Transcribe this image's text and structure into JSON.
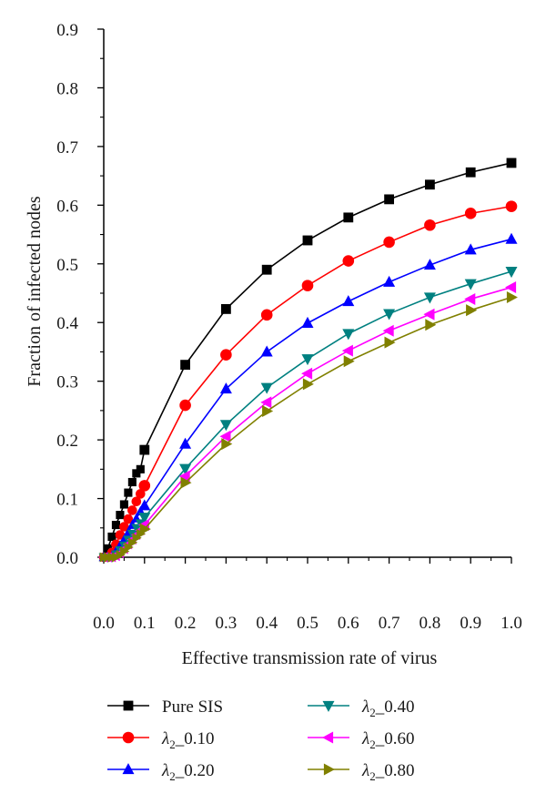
{
  "chart_data": {
    "type": "line",
    "xlabel": "Effective transmission rate of virus",
    "ylabel": "Fraction of infected nodes",
    "xlim": [
      0.0,
      1.0
    ],
    "ylim": [
      0.0,
      0.9
    ],
    "xticks": [
      "0.0",
      "0.1",
      "0.2",
      "0.3",
      "0.4",
      "0.5",
      "0.6",
      "0.7",
      "0.8",
      "0.9",
      "1.0"
    ],
    "yticks": [
      "0.0",
      "0.1",
      "0.2",
      "0.3",
      "0.4",
      "0.5",
      "0.6",
      "0.7",
      "0.8",
      "0.9"
    ],
    "grid": false,
    "legend_position": "bottom",
    "x": [
      0.0,
      0.01,
      0.02,
      0.03,
      0.04,
      0.05,
      0.06,
      0.07,
      0.08,
      0.09,
      0.1,
      0.2,
      0.3,
      0.4,
      0.5,
      0.6,
      0.7,
      0.8,
      0.9,
      1.0
    ],
    "series": [
      {
        "name": "Pure SIS",
        "legend_prefix": "",
        "legend_suffix": "",
        "color": "#000000",
        "marker": "square",
        "values": [
          0.0,
          0.015,
          0.035,
          0.055,
          0.072,
          0.09,
          0.11,
          0.128,
          0.143,
          0.15,
          0.183,
          0.328,
          0.423,
          0.49,
          0.54,
          0.579,
          0.61,
          0.635,
          0.656,
          0.672
        ]
      },
      {
        "name": "λ2_0.10",
        "legend_prefix": "λ",
        "legend_sub": "2",
        "legend_suffix": "_0.10",
        "color": "#ff0000",
        "marker": "circle",
        "values": [
          0.0,
          0.0,
          0.008,
          0.022,
          0.038,
          0.052,
          0.065,
          0.08,
          0.095,
          0.108,
          0.122,
          0.259,
          0.345,
          0.413,
          0.463,
          0.505,
          0.537,
          0.566,
          0.586,
          0.598
        ]
      },
      {
        "name": "λ2_0.20",
        "legend_prefix": "λ",
        "legend_sub": "2",
        "legend_suffix": "_0.20",
        "color": "#0000ff",
        "marker": "triangle-up",
        "values": [
          0.0,
          0.0,
          0.002,
          0.01,
          0.02,
          0.03,
          0.042,
          0.055,
          0.066,
          0.078,
          0.088,
          0.193,
          0.287,
          0.35,
          0.399,
          0.436,
          0.469,
          0.498,
          0.524,
          0.542
        ]
      },
      {
        "name": "λ2_0.40",
        "legend_prefix": "λ",
        "legend_sub": "2",
        "legend_suffix": "_0.40",
        "color": "#008080",
        "marker": "triangle-down",
        "values": [
          0.0,
          0.0,
          0.0,
          0.005,
          0.012,
          0.02,
          0.03,
          0.04,
          0.05,
          0.058,
          0.068,
          0.151,
          0.226,
          0.289,
          0.338,
          0.381,
          0.415,
          0.443,
          0.466,
          0.487
        ]
      },
      {
        "name": "λ2_0.60",
        "legend_prefix": "λ",
        "legend_sub": "2",
        "legend_suffix": "_0.60",
        "color": "#ff00ff",
        "marker": "triangle-left",
        "values": [
          0.0,
          0.0,
          0.0,
          0.002,
          0.007,
          0.014,
          0.022,
          0.03,
          0.038,
          0.046,
          0.055,
          0.138,
          0.206,
          0.264,
          0.313,
          0.352,
          0.386,
          0.414,
          0.44,
          0.46
        ]
      },
      {
        "name": "λ2_0.80",
        "legend_prefix": "λ",
        "legend_sub": "2",
        "legend_suffix": "_0.80",
        "color": "#808000",
        "marker": "triangle-right",
        "values": [
          0.0,
          0.0,
          0.0,
          0.0,
          0.004,
          0.01,
          0.017,
          0.025,
          0.033,
          0.04,
          0.048,
          0.127,
          0.193,
          0.249,
          0.295,
          0.334,
          0.366,
          0.396,
          0.421,
          0.443
        ]
      }
    ]
  }
}
